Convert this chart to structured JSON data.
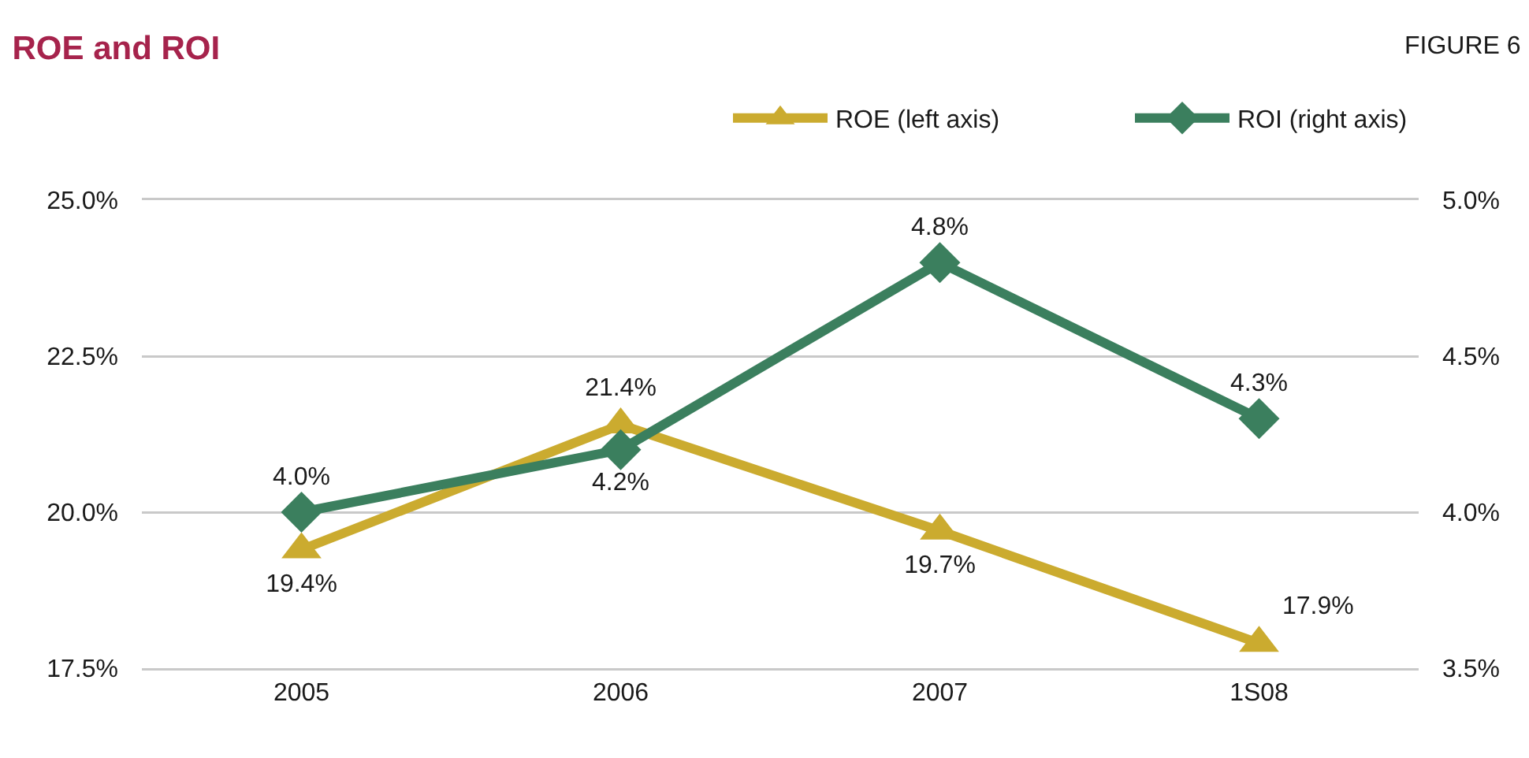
{
  "chart_data": {
    "type": "line",
    "title": "ROE and ROI",
    "annotations": [
      "FIGURE 6"
    ],
    "categories": [
      "2005",
      "2006",
      "2007",
      "1S08"
    ],
    "series": [
      {
        "name": "ROE (left axis)",
        "color": "#cbab2f",
        "marker": "triangle",
        "values": [
          19.4,
          21.4,
          19.7,
          17.9
        ],
        "value_labels": [
          "19.4%",
          "21.4%",
          "19.7%",
          "17.9%"
        ]
      },
      {
        "name": "ROI (right axis)",
        "color": "#3b7f5e",
        "marker": "diamond",
        "axis": "y2",
        "values": [
          4.0,
          4.2,
          4.8,
          4.3
        ],
        "value_labels": [
          "4.0%",
          "4.2%",
          "4.8%",
          "4.3%"
        ]
      }
    ],
    "ylim": [
      17.5,
      25
    ],
    "yticks": [
      {
        "value": 17.5,
        "label": "17.5%"
      },
      {
        "value": 20,
        "label": "20.0%"
      },
      {
        "value": 22.5,
        "label": "22.5%"
      },
      {
        "value": 25,
        "label": "25.0%"
      }
    ],
    "y2lim": [
      3.5,
      5
    ],
    "y2ticks": [
      {
        "value": 3.5,
        "label": "3.5%"
      },
      {
        "value": 4,
        "label": "4.0%"
      },
      {
        "value": 4.5,
        "label": "4.5%"
      },
      {
        "value": 5,
        "label": "5.0%"
      }
    ],
    "grid": "y",
    "legend": "top right",
    "line_style": "solid"
  }
}
